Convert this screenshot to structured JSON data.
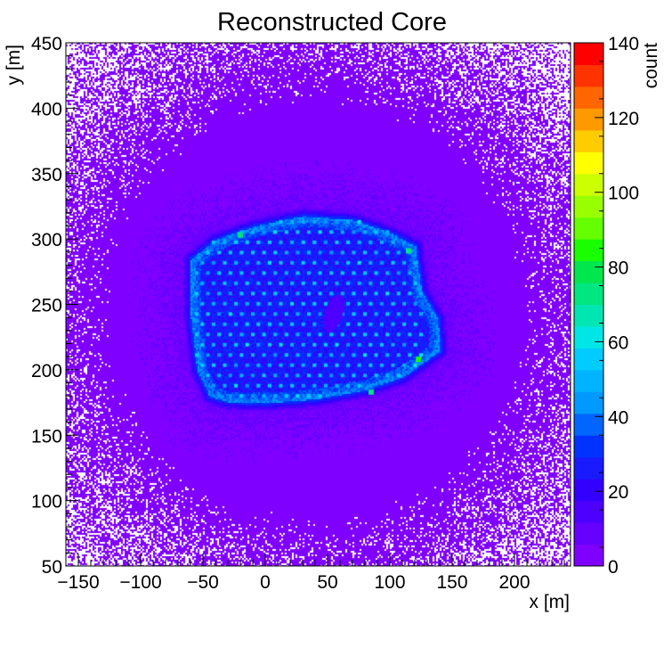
{
  "chart_data": {
    "type": "heatmap",
    "title": "Reconstructed Core",
    "xlabel": "x [m]",
    "ylabel": "y [m]",
    "zlabel": "count",
    "xlim": [
      -160,
      245
    ],
    "ylim": [
      50,
      450
    ],
    "zlim": [
      0,
      140
    ],
    "x_ticks": [
      -150,
      -100,
      -50,
      0,
      50,
      100,
      150,
      200
    ],
    "y_ticks": [
      50,
      100,
      150,
      200,
      250,
      300,
      350,
      400,
      450
    ],
    "z_ticks": [
      0,
      20,
      40,
      60,
      80,
      100,
      120,
      140
    ],
    "x_tick_labels": [
      "−150",
      "−100",
      "−50",
      "0",
      "50",
      "100",
      "150",
      "200"
    ],
    "y_tick_labels": [
      "50",
      "100",
      "150",
      "200",
      "250",
      "300",
      "350",
      "400",
      "450"
    ],
    "z_tick_labels": [
      "0",
      "20",
      "40",
      "60",
      "80",
      "100",
      "120",
      "140"
    ],
    "palette": [
      "#8000ff",
      "#6600ff",
      "#4d00ff",
      "#3300ff",
      "#1a1aff",
      "#0033ff",
      "#0066ff",
      "#0099ff",
      "#00b3ff",
      "#00ccff",
      "#00e6e6",
      "#00e6b3",
      "#00e680",
      "#00e64d",
      "#1aff00",
      "#66ff00",
      "#99ff00",
      "#ccff00",
      "#ffff00",
      "#ffcc00",
      "#ff9900",
      "#ff6600",
      "#ff3300",
      "#ff0000"
    ],
    "array_region": {
      "polygon": [
        [
          -60,
          285
        ],
        [
          -40,
          300
        ],
        [
          -10,
          310
        ],
        [
          30,
          318
        ],
        [
          70,
          315
        ],
        [
          100,
          305
        ],
        [
          120,
          295
        ],
        [
          125,
          260
        ],
        [
          138,
          240
        ],
        [
          140,
          215
        ],
        [
          125,
          205
        ],
        [
          110,
          195
        ],
        [
          80,
          185
        ],
        [
          40,
          178
        ],
        [
          0,
          175
        ],
        [
          -30,
          176
        ],
        [
          -45,
          180
        ],
        [
          -55,
          200
        ],
        [
          -60,
          240
        ]
      ],
      "halo_level": 42,
      "interior_level": 26,
      "background_peak_level": 6
    },
    "detector_grid": {
      "x_start": -55,
      "x_end": 125,
      "y_start": 180,
      "y_end": 315,
      "spacing": 9,
      "level": 52
    },
    "gap_region": {
      "center": [
        55,
        243
      ],
      "radius": 10
    },
    "hot_spots": [
      {
        "x": 115,
        "y": 291,
        "level": 70
      },
      {
        "x": 123,
        "y": 208,
        "level": 85
      },
      {
        "x": 85,
        "y": 183,
        "level": 75
      },
      {
        "x": -20,
        "y": 303,
        "level": 70
      }
    ]
  }
}
